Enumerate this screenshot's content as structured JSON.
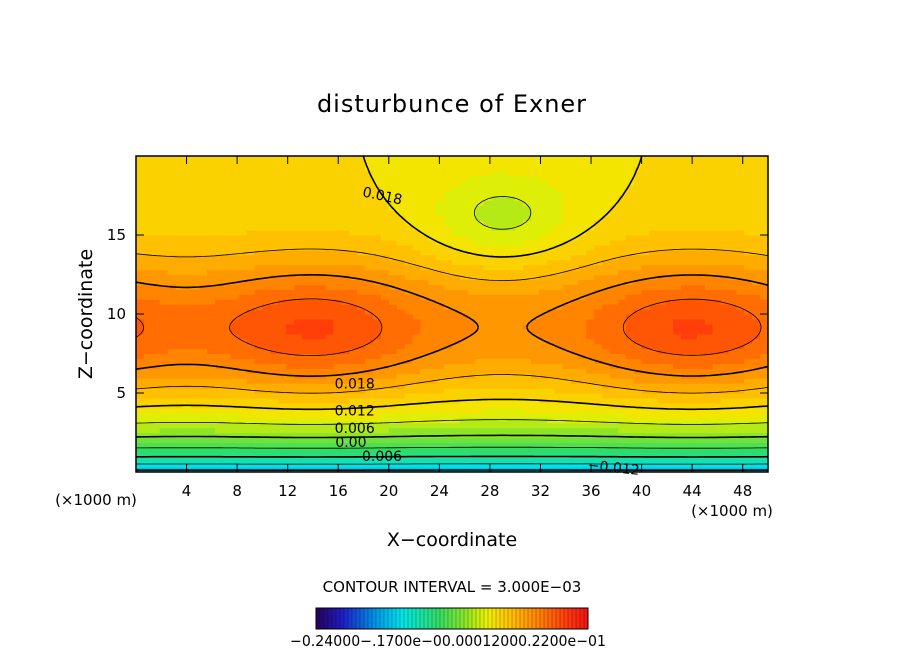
{
  "chart_data": {
    "type": "contour",
    "title": "disturbunce of Exner",
    "xlabel": "X−coordinate",
    "ylabel": "Z−coordinate",
    "x_unit": "(×1000 m)",
    "y_unit": "",
    "x_unit_right": "(×1000 m)",
    "xlim": [
      0,
      50
    ],
    "ylim": [
      0,
      20
    ],
    "x_ticks": [
      "4",
      "8",
      "12",
      "16",
      "20",
      "24",
      "28",
      "32",
      "36",
      "40",
      "44",
      "48"
    ],
    "y_ticks": [
      "5",
      "10",
      "15"
    ],
    "contour_interval_text": "CONTOUR INTERVAL = 3.000E−03",
    "contour_labels": [
      {
        "text": "0.018",
        "x": 19.5,
        "z": 17.5,
        "angle": 12
      },
      {
        "text": "0.018",
        "x": 17.3,
        "z": 5.6,
        "angle": 0
      },
      {
        "text": "0.012",
        "x": 17.3,
        "z": 3.9,
        "angle": 0
      },
      {
        "text": "0.006",
        "x": 17.3,
        "z": 2.8,
        "angle": 0
      },
      {
        "text": "0.00",
        "x": 17.0,
        "z": 1.9,
        "angle": 0
      },
      {
        "text": "−0.006",
        "x": 19.0,
        "z": 1.0,
        "angle": 0
      },
      {
        "text": "−0.012",
        "x": 37.8,
        "z": 0.3,
        "angle": 6
      }
    ],
    "colorbar": {
      "min": -0.024,
      "max": 0.021,
      "tick_label_text": "−0.24000−.1700e−00.00012000.2200e−01"
    },
    "field_description": "Exner pressure disturbance: horizontal stratification; positive maxima (~0.022) centered near x=14 and x=44 at z~9; negative values near surface"
  }
}
